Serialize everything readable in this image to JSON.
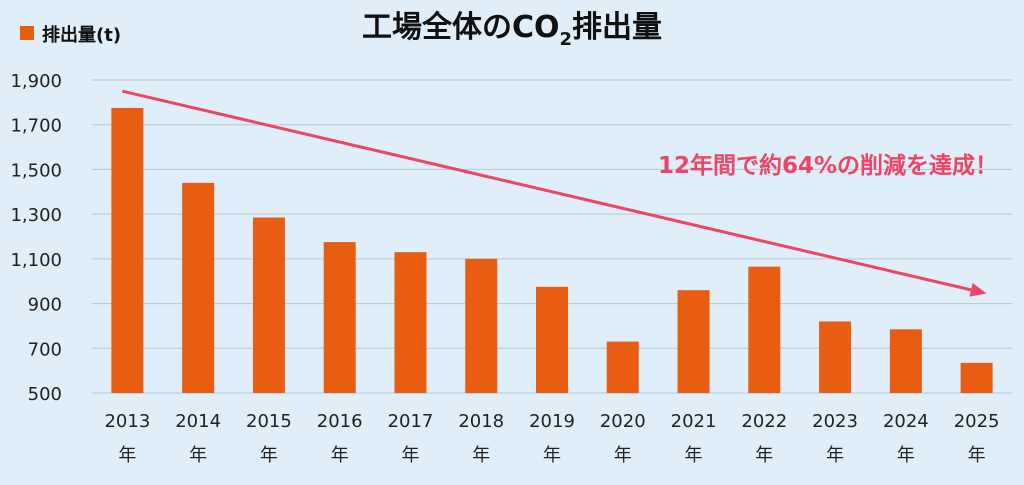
{
  "chart_data": {
    "type": "bar",
    "title": {
      "pre": "工場全体のCO",
      "sub": "2",
      "post": "排出量"
    },
    "legend": {
      "label": "排出量(t)",
      "color": "#e85d12",
      "position": "top-left"
    },
    "categories": [
      [
        "2013",
        "年"
      ],
      [
        "2014",
        "年"
      ],
      [
        "2015",
        "年"
      ],
      [
        "2016",
        "年"
      ],
      [
        "2017",
        "年"
      ],
      [
        "2018",
        "年"
      ],
      [
        "2019",
        "年"
      ],
      [
        "2020",
        "年"
      ],
      [
        "2021",
        "年"
      ],
      [
        "2022",
        "年"
      ],
      [
        "2023",
        "年"
      ],
      [
        "2024",
        "年"
      ],
      [
        "2025",
        "年"
      ]
    ],
    "series": [
      {
        "name": "排出量(t)",
        "color": "#e85d12",
        "values": [
          1775,
          1440,
          1285,
          1175,
          1130,
          1100,
          975,
          730,
          960,
          1065,
          820,
          785,
          635
        ]
      }
    ],
    "ylim": [
      500,
      1900
    ],
    "yticks": [
      "1,900",
      "1,700",
      "1,500",
      "1,300",
      "1,100",
      "900",
      "700",
      "500"
    ],
    "ytick_values": [
      1900,
      1700,
      1500,
      1300,
      1100,
      900,
      700,
      500
    ],
    "grid": true,
    "trend_arrow": {
      "from": {
        "x": "2013",
        "y": 1850
      },
      "to": {
        "x": "2025",
        "y": 945
      },
      "color": "#ee4466"
    },
    "annotation": {
      "text": "12年間で約64%の削減を達成！",
      "color": "#ee4466"
    }
  }
}
